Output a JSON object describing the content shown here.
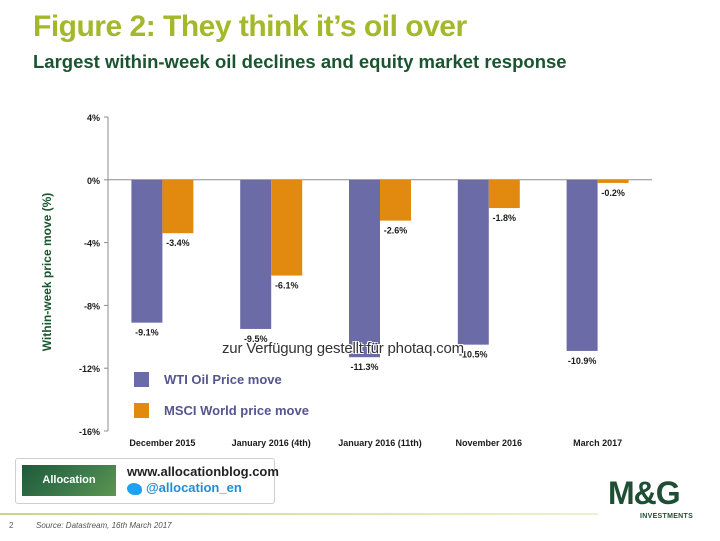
{
  "title": "Figure 2: They think it’s oil over",
  "subtitle": "Largest within-week oil declines and equity market response",
  "chart_data": {
    "type": "bar",
    "ylabel": "Within-week price move (%)",
    "ylim": [
      -16,
      4
    ],
    "yticks": [
      4,
      0,
      -4,
      -8,
      -12,
      -16
    ],
    "ytick_labels": [
      "4%",
      "0%",
      "-4%",
      "-8%",
      "-12%",
      "-16%"
    ],
    "categories": [
      "December 2015",
      "January 2016 (4th)",
      "January 2016 (11th)",
      "November 2016",
      "March 2017"
    ],
    "series": [
      {
        "name": "WTI Oil Price move",
        "color": "#6b6ba8",
        "values": [
          -9.1,
          -9.5,
          -11.3,
          -10.5,
          -10.9
        ],
        "labels": [
          "-9.1%",
          "-9.5%",
          "-11.3%",
          "-10.5%",
          "-10.9%"
        ]
      },
      {
        "name": "MSCI World price move",
        "color": "#e28a0f",
        "values": [
          -3.4,
          -6.1,
          -2.6,
          -1.8,
          -0.2
        ],
        "labels": [
          "-3.4%",
          "-6.1%",
          "-2.6%",
          "-1.8%",
          "-0.2%"
        ]
      }
    ],
    "legend_position": "bottom-left",
    "grid": false
  },
  "watermark": "zur Verfügung gestellt für photaq.com",
  "social": {
    "badge": "Allocation",
    "url": "www.allocationblog.com",
    "handle": "@allocation_en"
  },
  "footer": {
    "page_number": "2",
    "source": "Source: Datastream, 16th March 2017"
  },
  "brand": {
    "logo": "M&G",
    "sub": "INVESTMENTS"
  }
}
